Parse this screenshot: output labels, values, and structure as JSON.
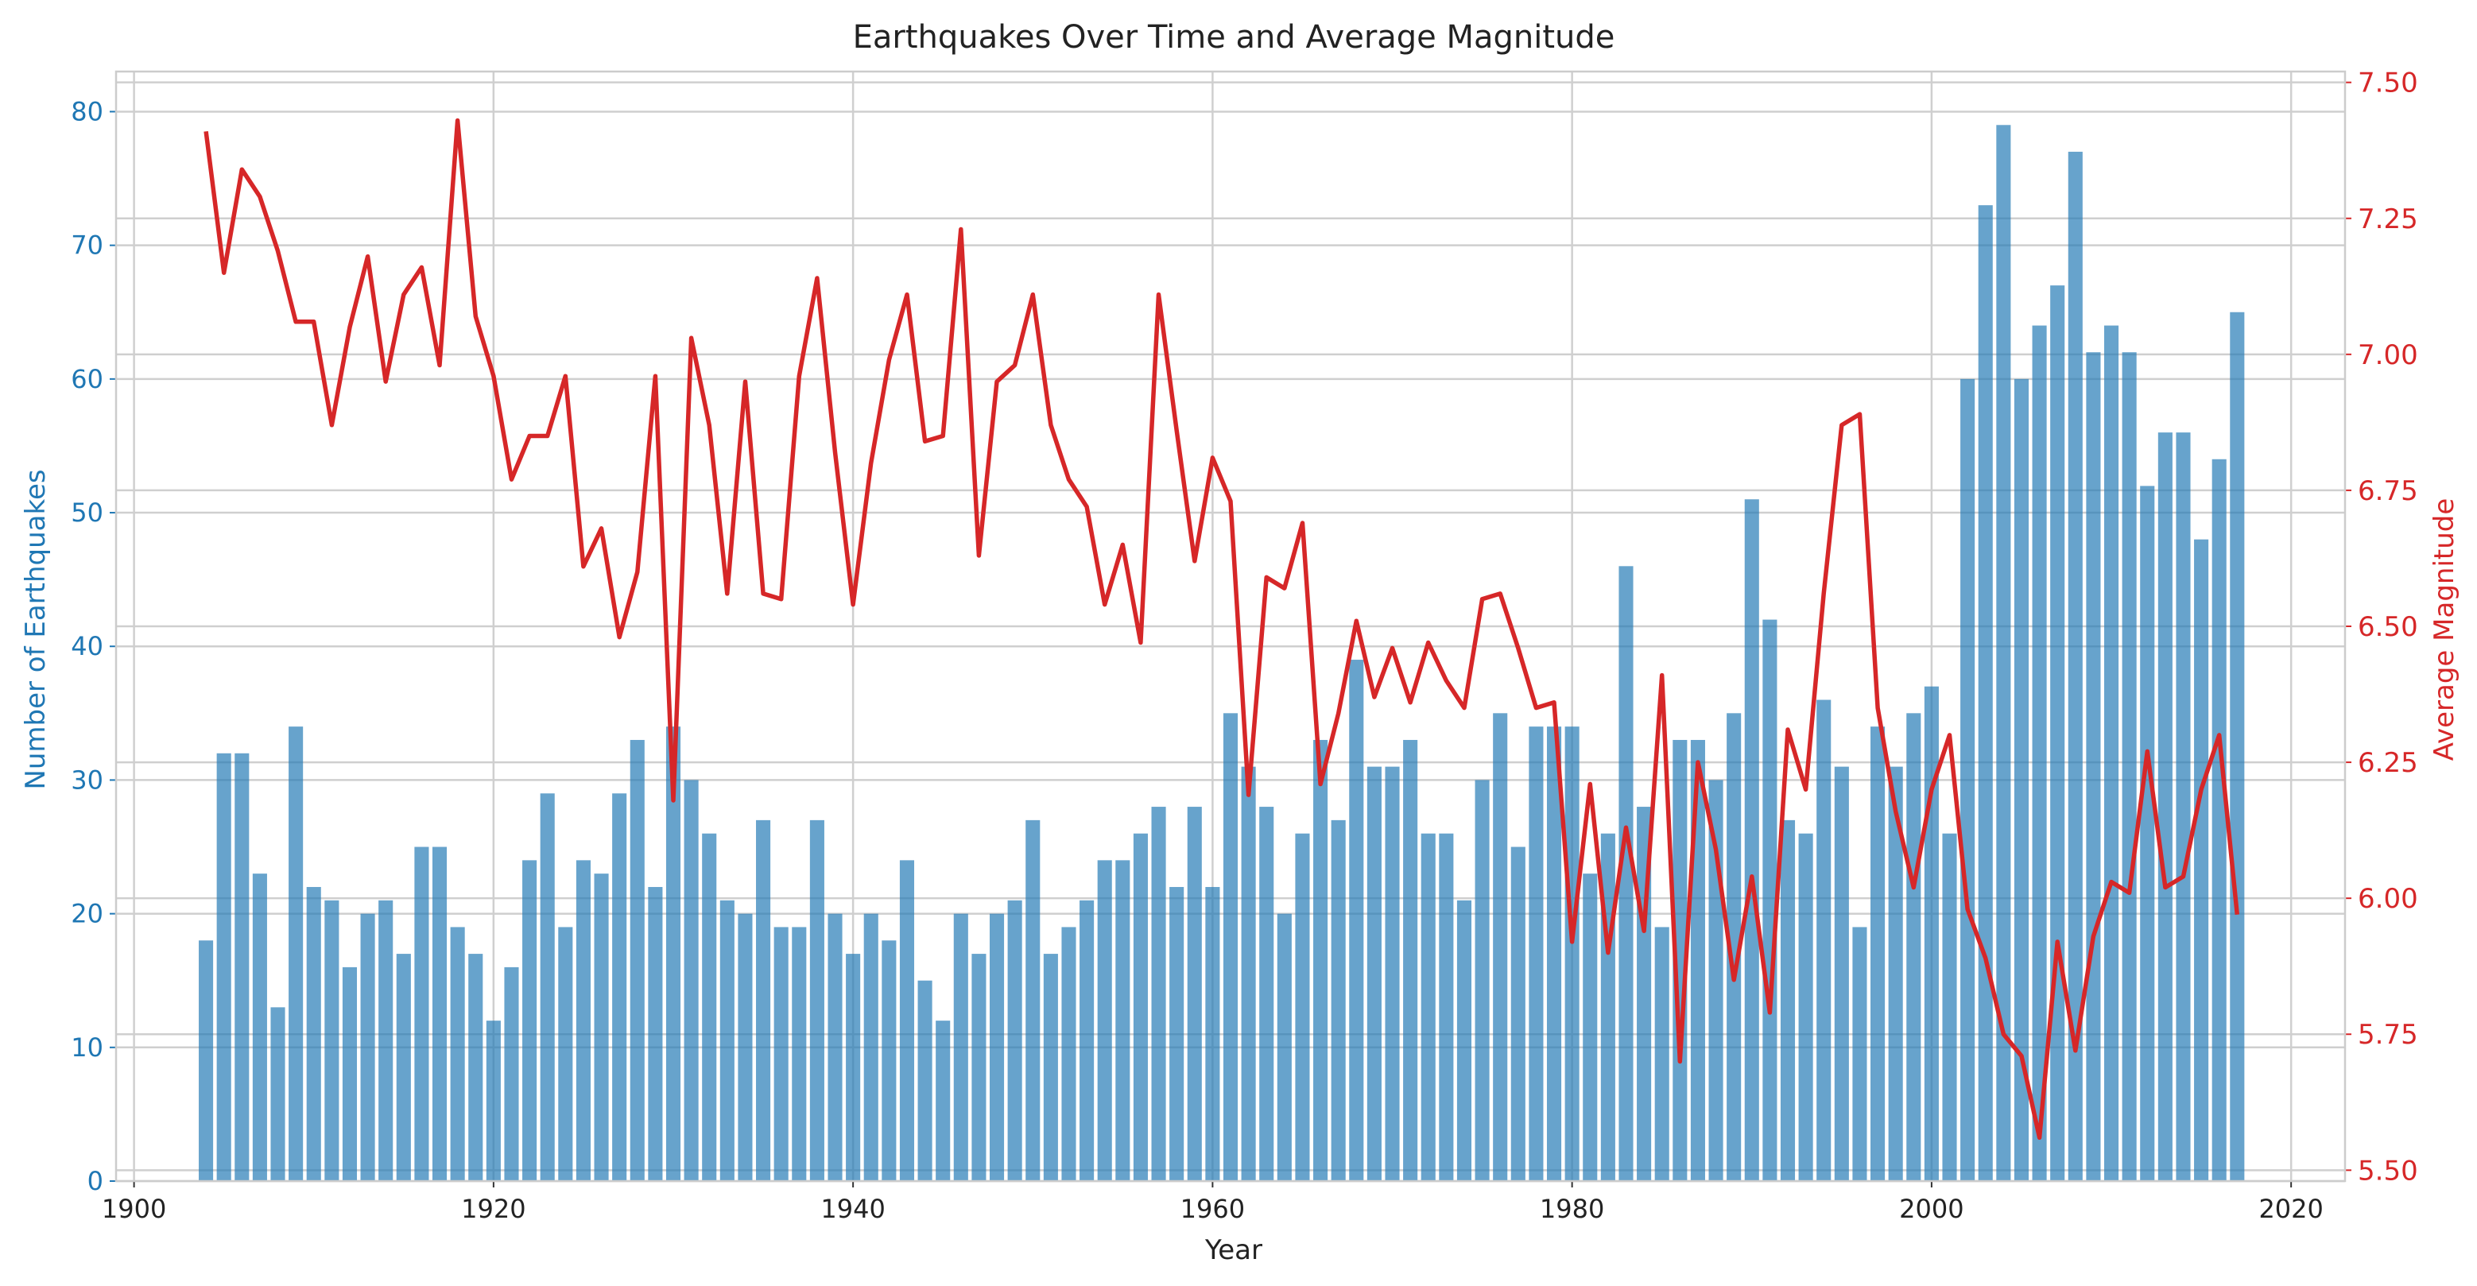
{
  "chart_data": {
    "type": "bar+line",
    "title": "Earthquakes Over Time and Average Magnitude",
    "xlabel": "Year",
    "ylabel": "Number of Earthquakes",
    "y2label": "Average Magnitude",
    "xlim": [
      1899,
      2023
    ],
    "ylim": [
      0,
      83
    ],
    "y2lim": [
      5.48,
      7.52
    ],
    "x_ticks": [
      1900,
      1920,
      1940,
      1960,
      1980,
      2000,
      2020
    ],
    "y_ticks": [
      0,
      10,
      20,
      30,
      40,
      50,
      60,
      70,
      80
    ],
    "y2_ticks": [
      "5.50",
      "5.75",
      "6.00",
      "6.25",
      "6.50",
      "6.75",
      "7.00",
      "7.25",
      "7.50"
    ],
    "grid": true,
    "colors": {
      "bars": "#1f77b4",
      "line": "#d62728",
      "left_axis": "#1f77b4",
      "right_axis": "#d62728",
      "title": "#222222"
    },
    "x": [
      1904,
      1905,
      1906,
      1907,
      1908,
      1909,
      1910,
      1911,
      1912,
      1913,
      1914,
      1915,
      1916,
      1917,
      1918,
      1919,
      1920,
      1921,
      1922,
      1923,
      1924,
      1925,
      1926,
      1927,
      1928,
      1929,
      1930,
      1931,
      1932,
      1933,
      1934,
      1935,
      1936,
      1937,
      1938,
      1939,
      1940,
      1941,
      1942,
      1943,
      1944,
      1945,
      1946,
      1947,
      1948,
      1949,
      1950,
      1951,
      1952,
      1953,
      1954,
      1955,
      1956,
      1957,
      1958,
      1959,
      1960,
      1961,
      1962,
      1963,
      1964,
      1965,
      1966,
      1967,
      1968,
      1969,
      1970,
      1971,
      1972,
      1973,
      1974,
      1975,
      1976,
      1977,
      1978,
      1979,
      1980,
      1981,
      1982,
      1983,
      1984,
      1985,
      1986,
      1987,
      1988,
      1989,
      1990,
      1991,
      1992,
      1993,
      1994,
      1995,
      1996,
      1997,
      1998,
      1999,
      2000,
      2001,
      2002,
      2003,
      2004,
      2005,
      2006,
      2007,
      2008,
      2009,
      2010,
      2011,
      2012,
      2013,
      2014,
      2015,
      2016,
      2017
    ],
    "series": [
      {
        "name": "Number of Earthquakes",
        "kind": "bar",
        "axis": "left",
        "values": [
          18,
          32,
          32,
          23,
          13,
          34,
          22,
          21,
          16,
          20,
          21,
          17,
          25,
          25,
          19,
          17,
          12,
          16,
          24,
          29,
          19,
          24,
          23,
          29,
          33,
          22,
          34,
          30,
          26,
          21,
          20,
          27,
          19,
          19,
          27,
          20,
          17,
          20,
          18,
          24,
          15,
          12,
          20,
          17,
          20,
          21,
          27,
          17,
          19,
          21,
          24,
          24,
          26,
          28,
          22,
          28,
          22,
          35,
          31,
          28,
          20,
          26,
          33,
          27,
          39,
          31,
          31,
          33,
          26,
          26,
          21,
          30,
          35,
          25,
          34,
          34,
          34,
          23,
          26,
          46,
          28,
          19,
          33,
          33,
          30,
          35,
          51,
          42,
          27,
          26,
          36,
          31,
          19,
          34,
          31,
          35,
          37,
          26,
          60,
          73,
          79,
          60,
          64,
          67,
          77,
          62,
          64,
          62,
          52,
          56,
          56,
          48,
          54,
          65
        ]
      },
      {
        "name": "Average Magnitude",
        "kind": "line",
        "axis": "right",
        "values": [
          7.41,
          7.15,
          7.34,
          7.29,
          7.19,
          7.06,
          7.06,
          6.87,
          7.05,
          7.18,
          6.95,
          7.11,
          7.16,
          6.98,
          7.43,
          7.07,
          6.96,
          6.77,
          6.85,
          6.85,
          6.96,
          6.61,
          6.68,
          6.48,
          6.6,
          6.96,
          6.18,
          7.03,
          6.87,
          6.56,
          6.95,
          6.56,
          6.55,
          6.96,
          7.14,
          6.82,
          6.54,
          6.8,
          6.99,
          7.11,
          6.84,
          6.85,
          7.23,
          6.63,
          6.95,
          6.98,
          7.11,
          6.87,
          6.77,
          6.72,
          6.54,
          6.65,
          6.47,
          7.11,
          6.86,
          6.62,
          6.81,
          6.73,
          6.19,
          6.59,
          6.57,
          6.69,
          6.21,
          6.34,
          6.51,
          6.37,
          6.46,
          6.36,
          6.47,
          6.4,
          6.35,
          6.55,
          6.56,
          6.46,
          6.35,
          6.36,
          5.92,
          6.21,
          5.9,
          6.13,
          5.94,
          6.41,
          5.7,
          6.25,
          6.09,
          5.85,
          6.04,
          5.79,
          6.31,
          6.2,
          6.56,
          6.87,
          6.89,
          6.35,
          6.16,
          6.02,
          6.2,
          6.3,
          5.98,
          5.89,
          5.75,
          5.71,
          5.56,
          5.92,
          5.72,
          5.93,
          6.03,
          6.01,
          6.27,
          6.02,
          6.04,
          6.2,
          6.3,
          5.97
        ]
      }
    ]
  }
}
